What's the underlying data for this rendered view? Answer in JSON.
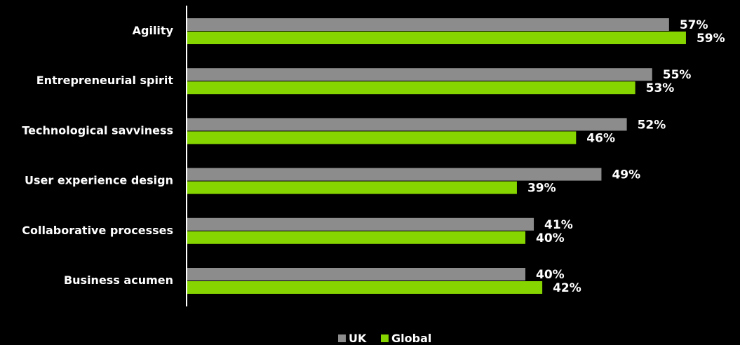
{
  "chart_data": {
    "type": "bar",
    "orientation": "horizontal",
    "categories": [
      "Agility",
      "Entrepreneurial spirit",
      "Technological savviness",
      "User experience design",
      "Collaborative processes",
      "Business acumen"
    ],
    "series": [
      {
        "name": "UK",
        "values": [
          57,
          55,
          52,
          49,
          41,
          40
        ],
        "labels": [
          "57%",
          "55%",
          "52%",
          "49%",
          "41%",
          "40%"
        ],
        "color": "#8c8c8c"
      },
      {
        "name": "Global",
        "values": [
          59,
          53,
          46,
          39,
          40,
          42
        ],
        "labels": [
          "59%",
          "53%",
          "46%",
          "39%",
          "40%",
          "42%"
        ],
        "color": "#86d400"
      }
    ],
    "title": "",
    "xlabel": "",
    "ylabel": "",
    "xlim": [
      0,
      60
    ],
    "grid": false,
    "legend": "bottom-center",
    "background": "#000000"
  }
}
